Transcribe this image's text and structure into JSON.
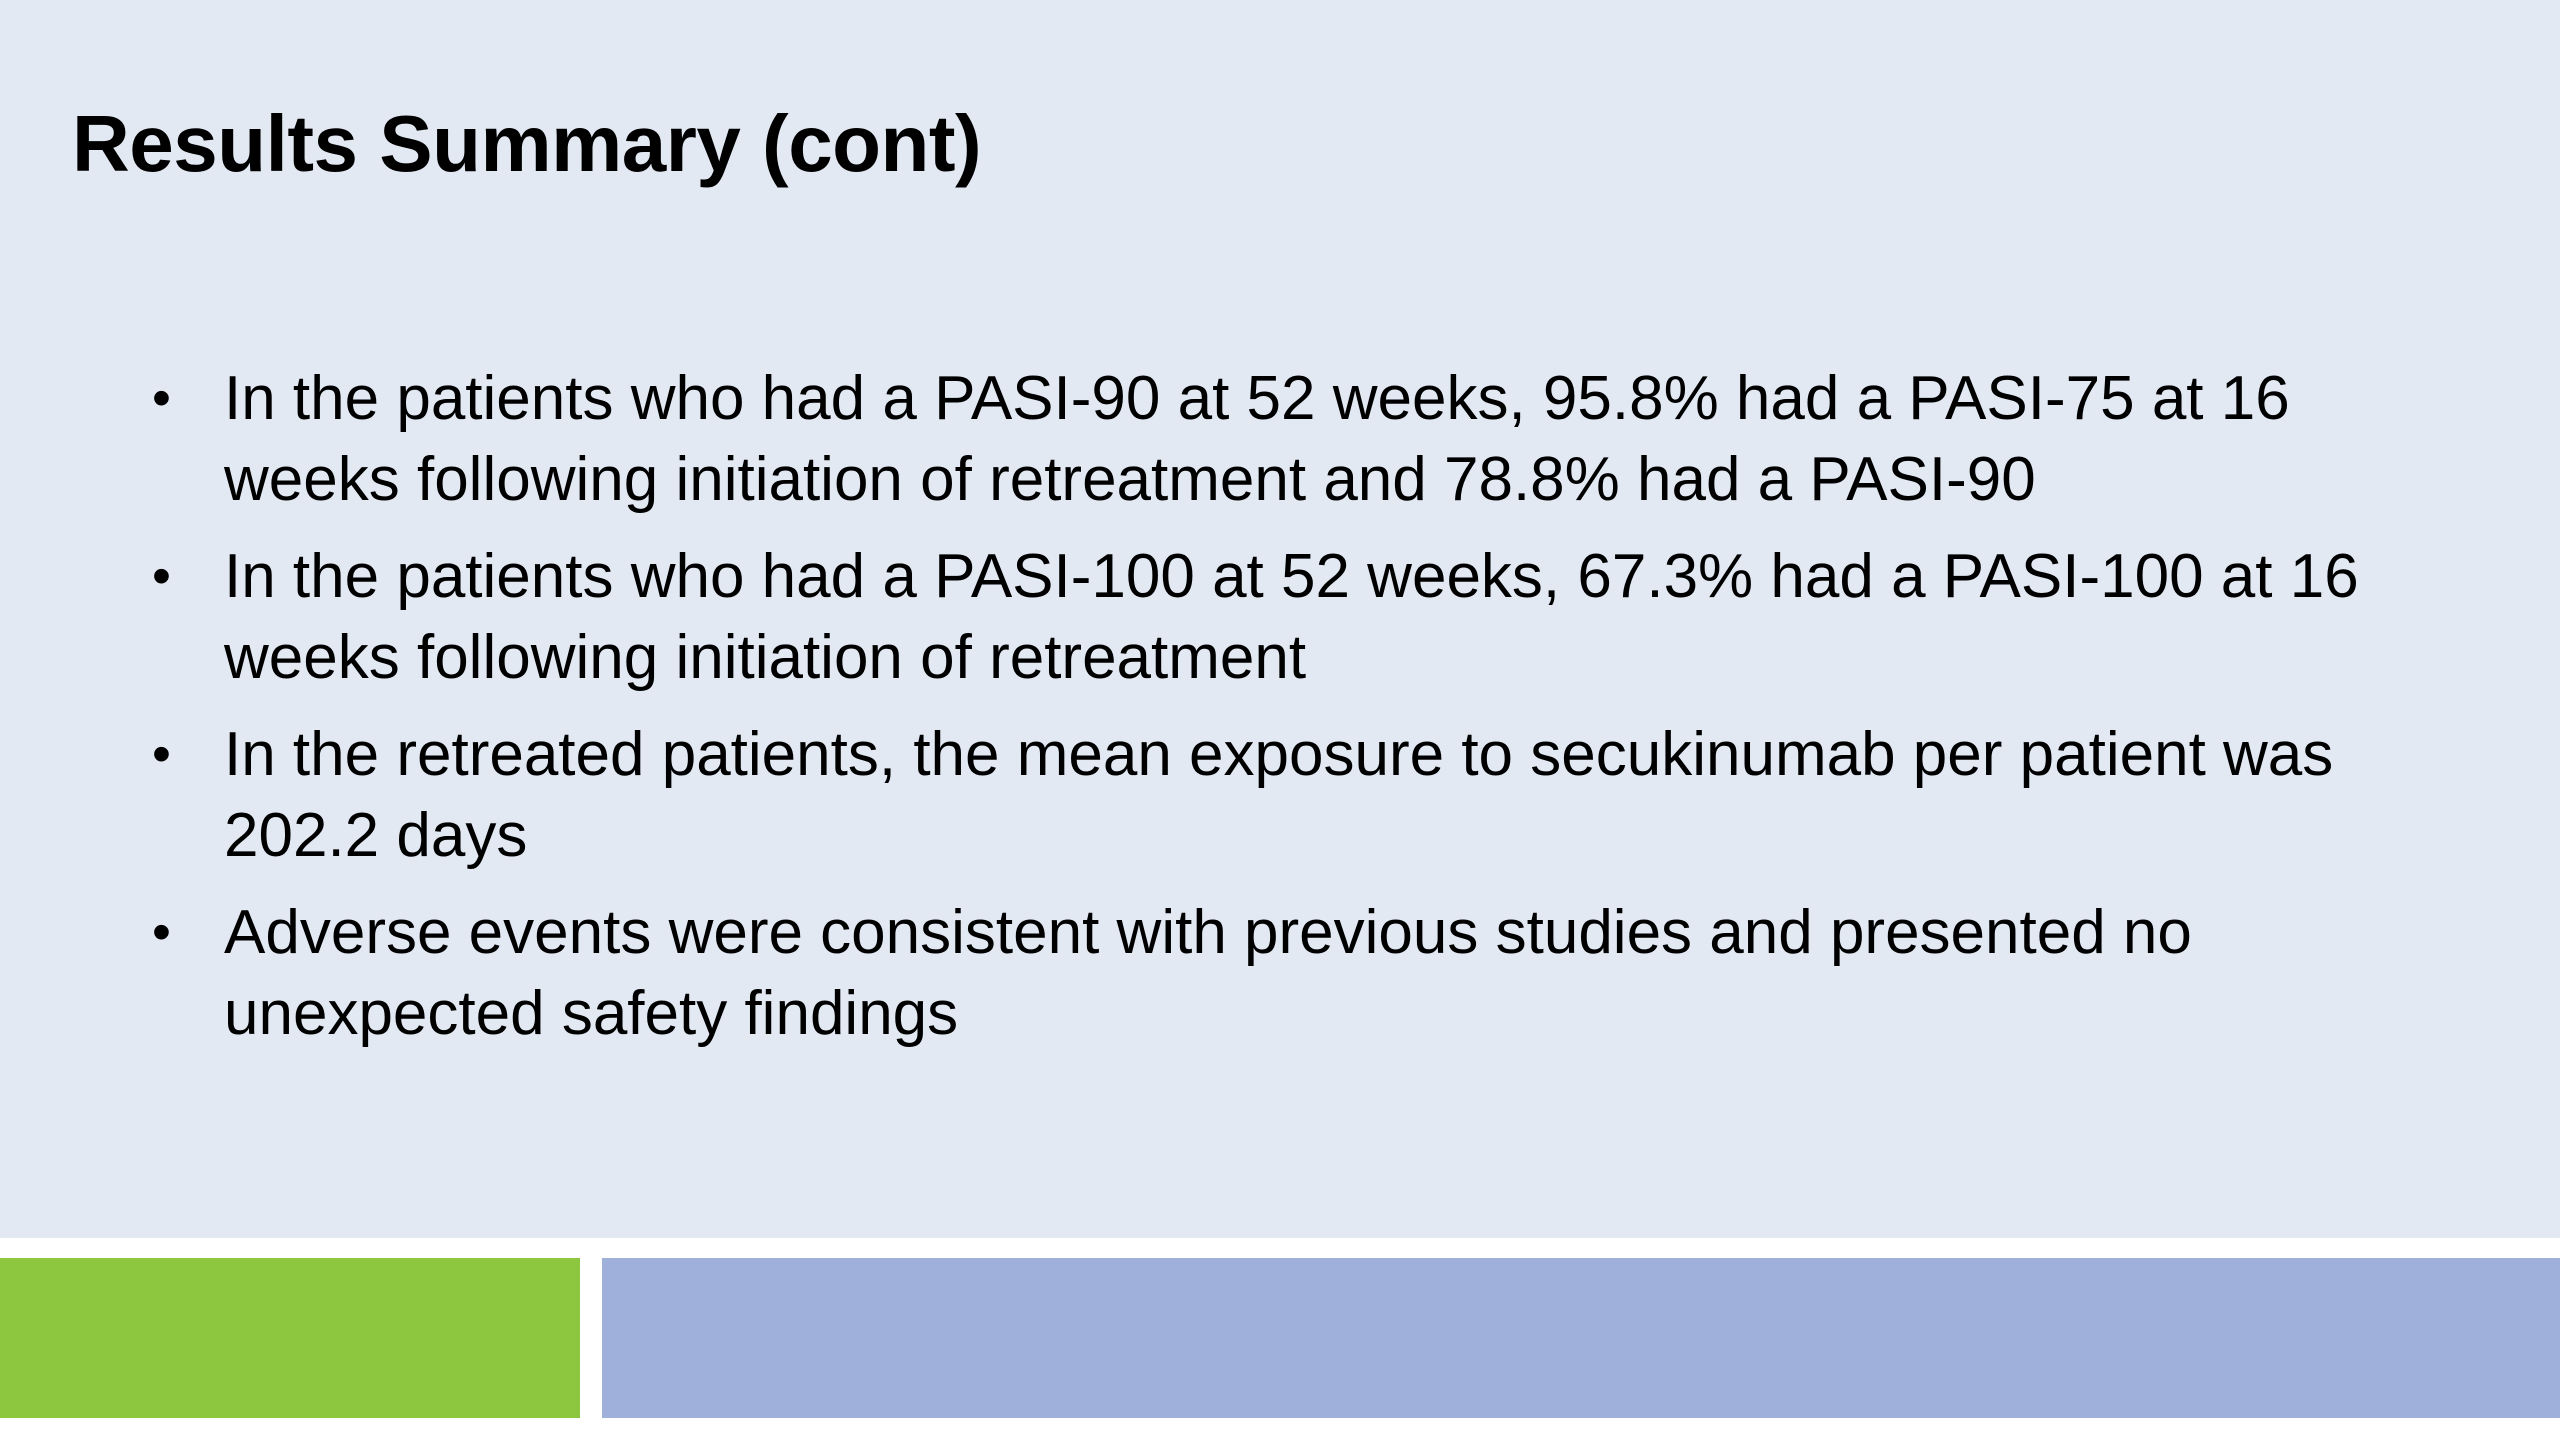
{
  "slide": {
    "title": "Results Summary (cont)",
    "bullet_symbol": "•",
    "bullets": [
      "In the patients who had a PASI-90 at 52 weeks, 95.8% had a PASI-75 at 16 weeks following initiation of retreatment and 78.8% had a PASI-90",
      "In the patients who had a PASI-100 at 52 weeks, 67.3% had a PASI-100 at 16 weeks following initiation of retreatment",
      "In the retreated patients, the mean exposure to secukinumab per patient was 202.2 days",
      "Adverse events were consistent with previous studies and presented no unexpected safety findings"
    ]
  },
  "colors": {
    "background": "#e2e9f3",
    "footer_green": "#8dc63f",
    "footer_blue": "#9fb1db",
    "text": "#000000"
  }
}
